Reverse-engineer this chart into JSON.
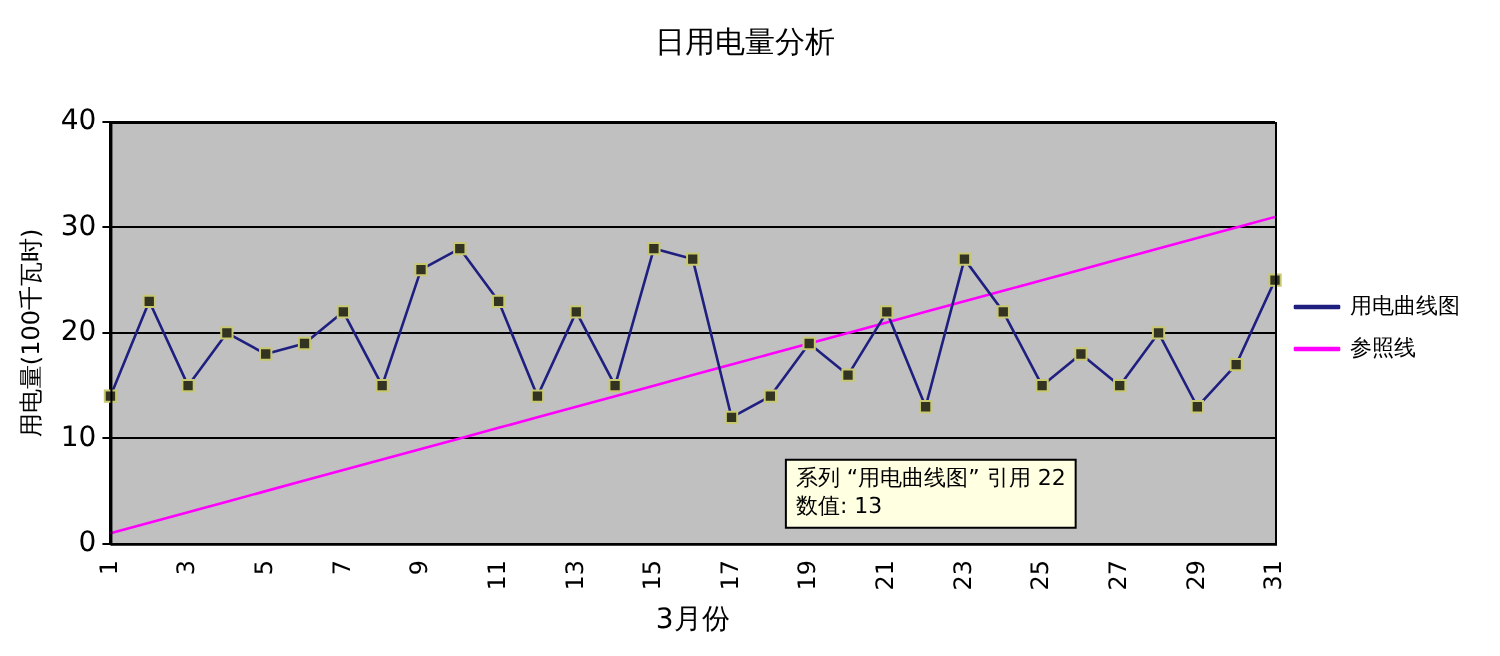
{
  "chart_data": {
    "type": "line",
    "title": "日用电量分析",
    "xlabel": "3月份",
    "ylabel": "用电量(100千瓦时)",
    "categories": [
      "1",
      null,
      "3",
      null,
      "5",
      null,
      "7",
      null,
      "9",
      null,
      "11",
      null,
      "13",
      null,
      "15",
      null,
      "17",
      null,
      "19",
      null,
      "21",
      null,
      "23",
      null,
      "25",
      null,
      "27",
      null,
      "29",
      null,
      "31"
    ],
    "series": [
      {
        "name": "用电曲线图",
        "color": "#1f1f80",
        "marker": "square",
        "values": [
          14,
          23,
          15,
          20,
          18,
          19,
          22,
          15,
          26,
          28,
          23,
          14,
          22,
          15,
          28,
          27,
          12,
          14,
          19,
          16,
          22,
          13,
          27,
          22,
          15,
          18,
          15,
          20,
          13,
          17,
          25
        ]
      },
      {
        "name": "参照线",
        "color": "#ff00ff",
        "marker": "none",
        "values": [
          1,
          2,
          3,
          4,
          5,
          6,
          7,
          8,
          9,
          10,
          11,
          12,
          13,
          14,
          15,
          16,
          17,
          18,
          19,
          20,
          21,
          22,
          23,
          24,
          25,
          26,
          27,
          28,
          29,
          30,
          31
        ]
      }
    ],
    "ylim": [
      0,
      40
    ],
    "yticks": [
      0,
      10,
      20,
      30,
      40
    ],
    "grid": "y",
    "legend": "right",
    "annotations": [
      "系列 “用电曲线图” 引用 22\n数值: 13"
    ]
  }
}
